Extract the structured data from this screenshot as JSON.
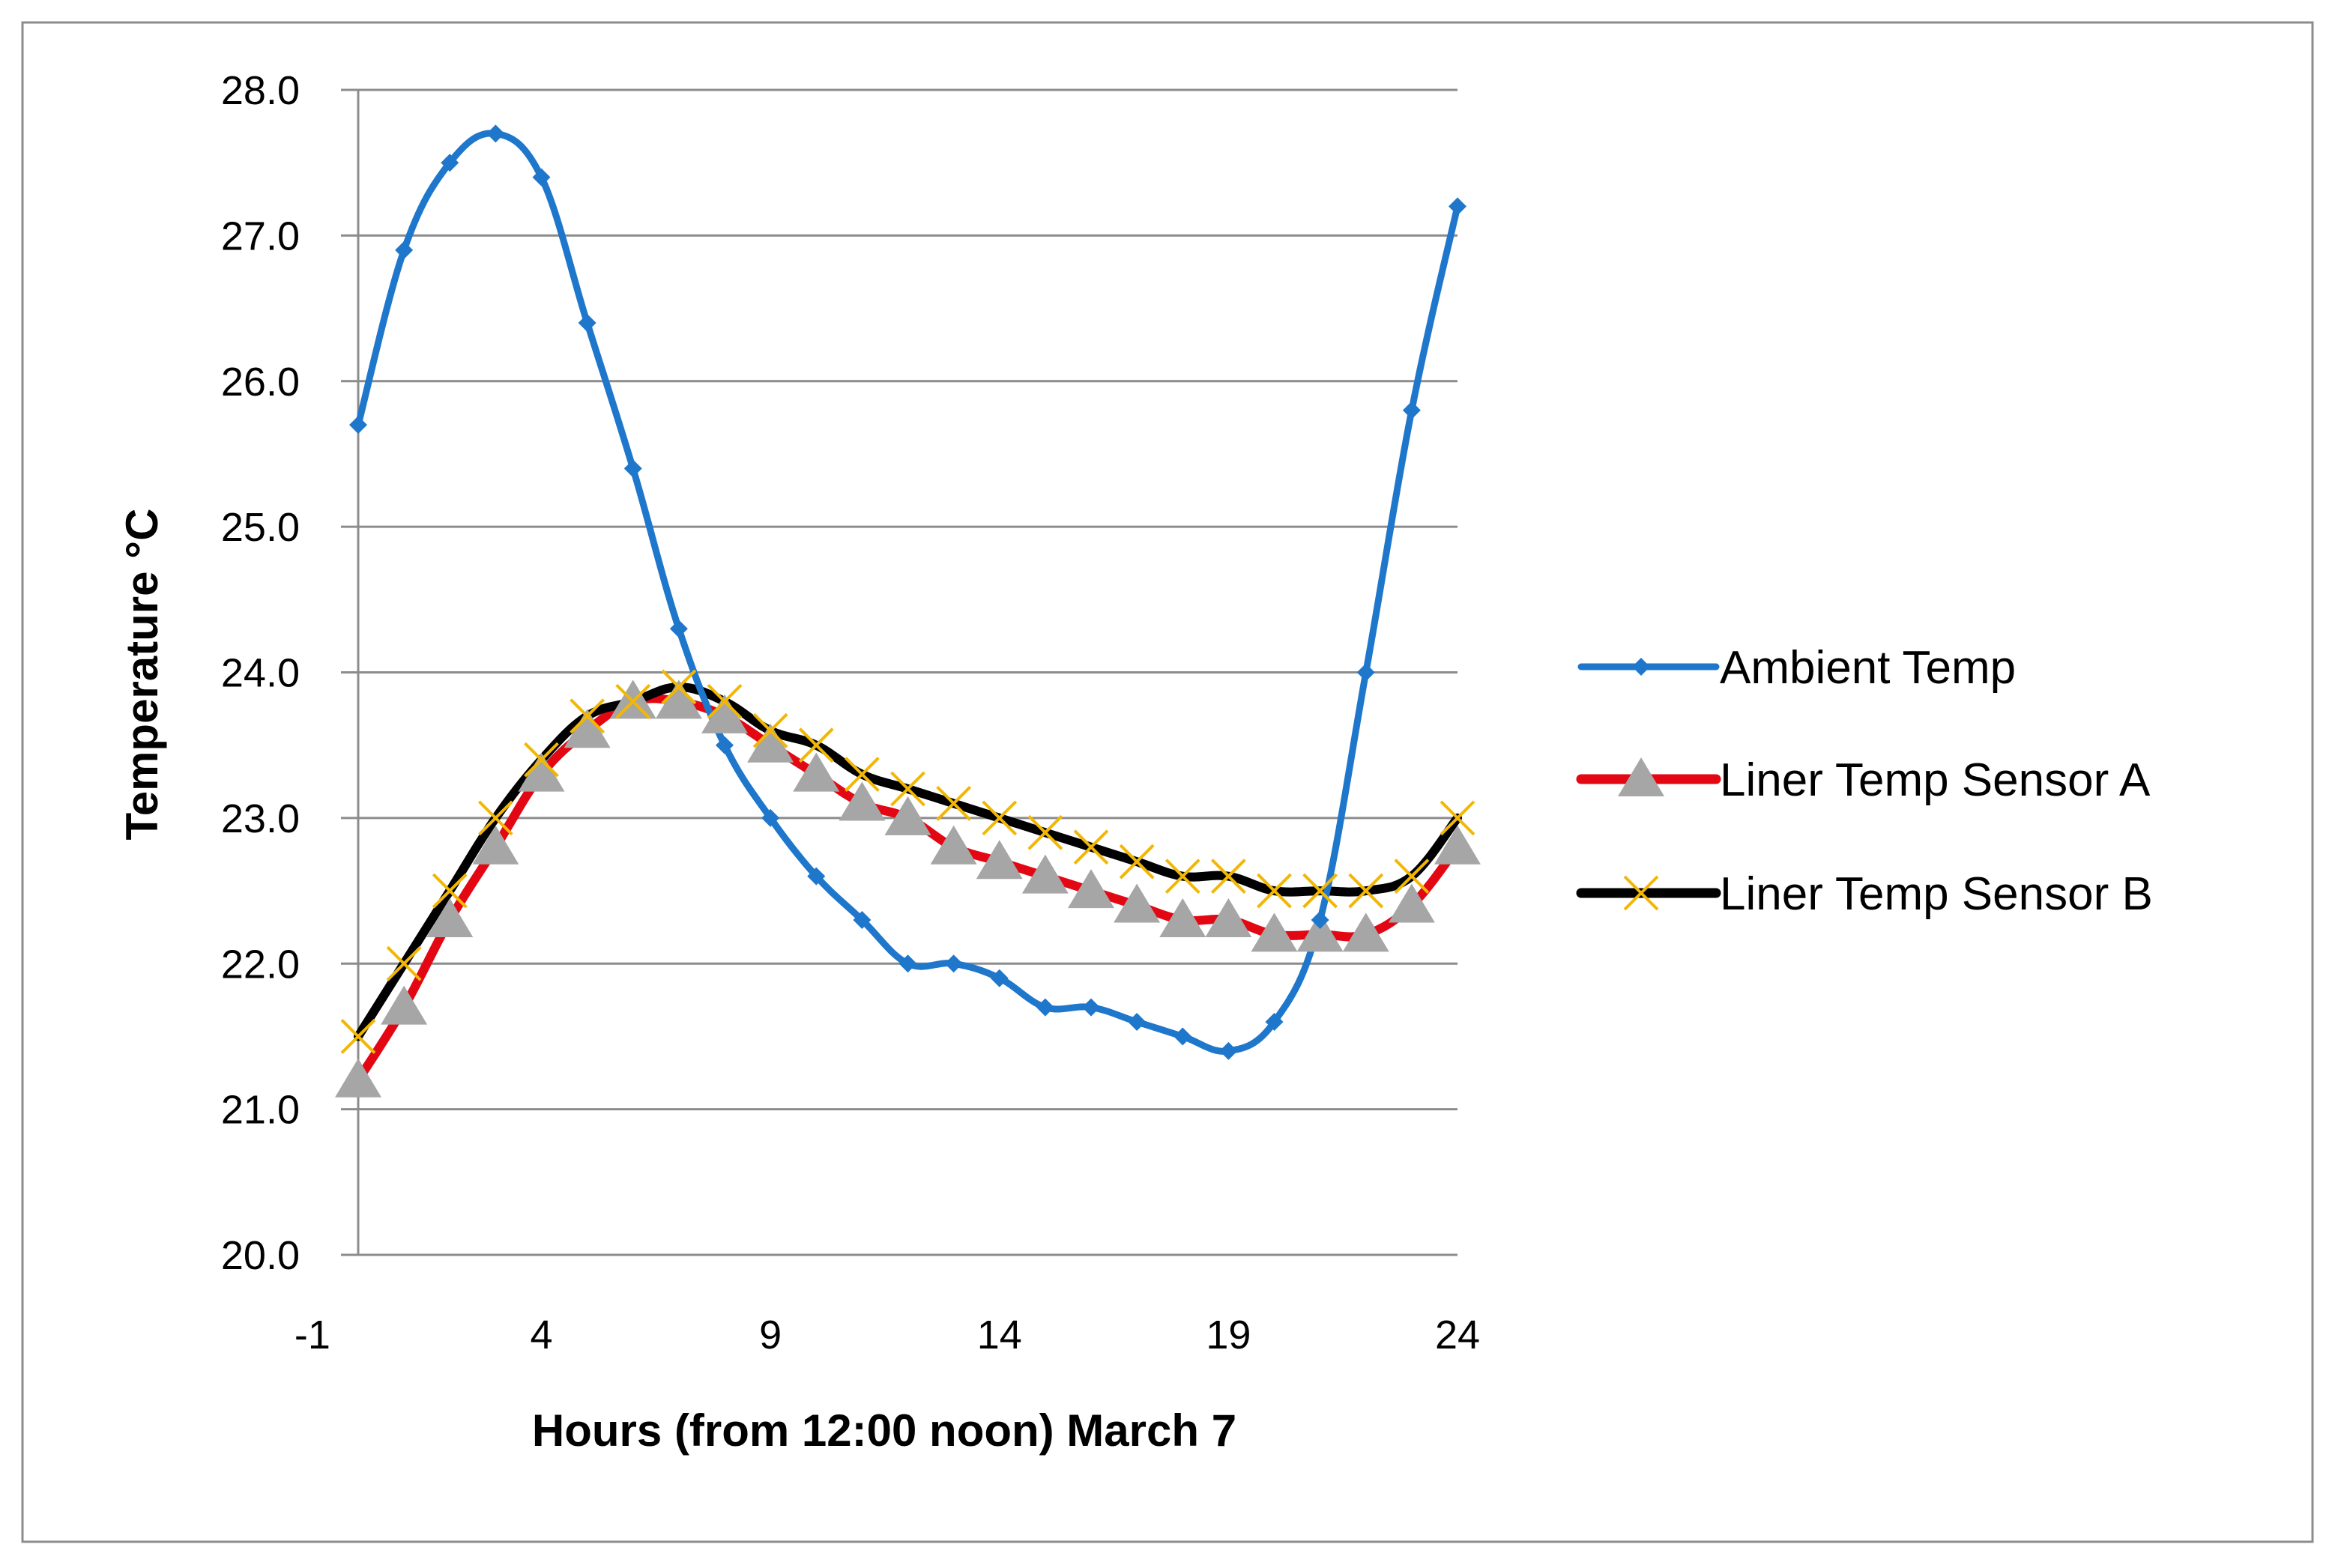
{
  "chart_data": {
    "type": "line",
    "title": "",
    "xlabel": "Hours (from 12:00 noon) March 7",
    "ylabel": "Temperature  °C",
    "xlim": [
      -1,
      24
    ],
    "ylim": [
      20,
      28
    ],
    "x_ticks": [
      -1,
      4,
      9,
      14,
      19,
      24
    ],
    "y_ticks": [
      "20.0",
      "21.0",
      "22.0",
      "23.0",
      "24.0",
      "25.0",
      "26.0",
      "27.0",
      "28.0"
    ],
    "grid": "horizontal",
    "legend_position": "right",
    "x": [
      0,
      1,
      2,
      3,
      4,
      5,
      6,
      7,
      8,
      9,
      10,
      11,
      12,
      13,
      14,
      15,
      16,
      17,
      18,
      19,
      20,
      21,
      22,
      23,
      24
    ],
    "series": [
      {
        "name": "Ambient Temp",
        "color": "#1F77CC",
        "marker": "diamond",
        "values": [
          25.7,
          26.9,
          27.5,
          27.7,
          27.4,
          26.4,
          25.4,
          24.3,
          23.5,
          23.0,
          22.6,
          22.3,
          22.0,
          22.0,
          21.9,
          21.7,
          21.7,
          21.6,
          21.5,
          21.4,
          21.6,
          22.3,
          24.0,
          25.8,
          27.2
        ]
      },
      {
        "name": "Liner  Temp Sensor A",
        "color": "#E30613",
        "marker_color": "#A6A6A6",
        "marker": "triangle",
        "values": [
          21.2,
          21.7,
          22.3,
          22.8,
          23.3,
          23.6,
          23.8,
          23.8,
          23.7,
          23.5,
          23.3,
          23.1,
          23.0,
          22.8,
          22.7,
          22.6,
          22.5,
          22.4,
          22.3,
          22.3,
          22.2,
          22.2,
          22.2,
          22.4,
          22.8
        ]
      },
      {
        "name": "Liner Temp Sensor B",
        "color": "#000000",
        "marker_color": "#F2B705",
        "marker": "x",
        "values": [
          21.5,
          22.0,
          22.5,
          23.0,
          23.4,
          23.7,
          23.8,
          23.9,
          23.8,
          23.6,
          23.5,
          23.3,
          23.2,
          23.1,
          23.0,
          22.9,
          22.8,
          22.7,
          22.6,
          22.6,
          22.5,
          22.5,
          22.5,
          22.6,
          23.0
        ]
      }
    ]
  }
}
